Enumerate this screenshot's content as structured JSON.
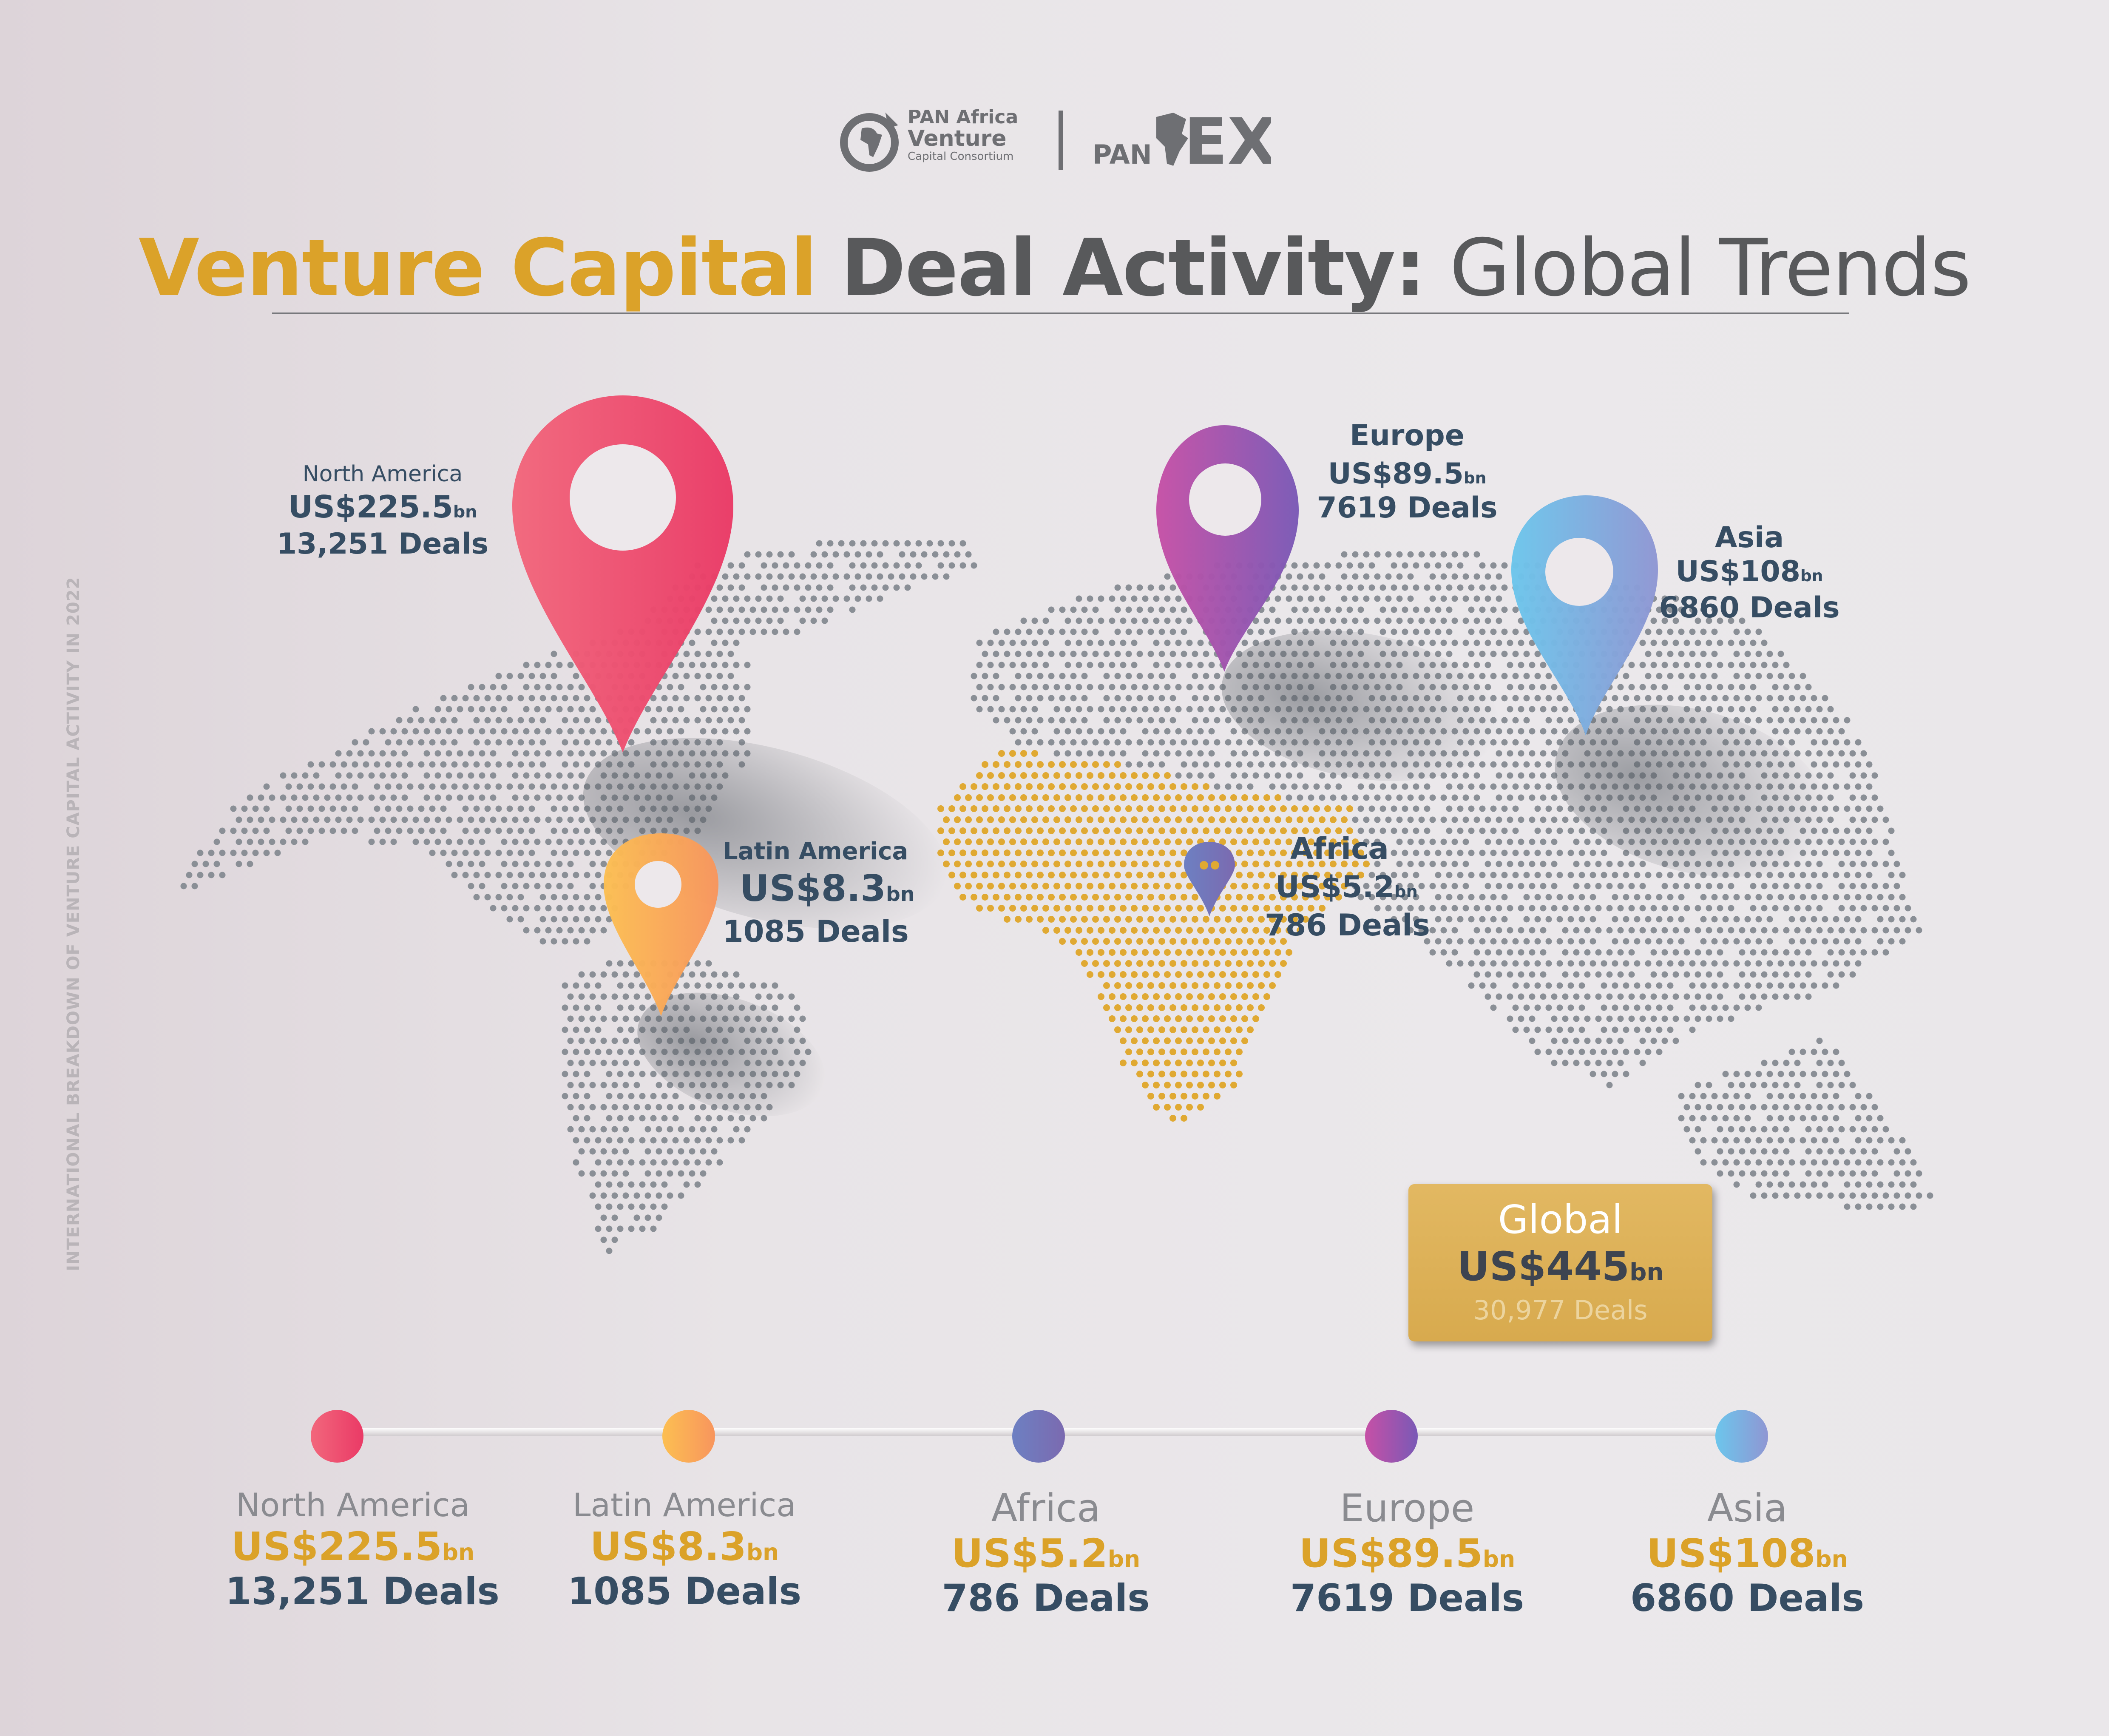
{
  "logos": {
    "pan_africa": {
      "line1": "PAN Africa",
      "line2": "Venture",
      "line3": "Capital Consortium"
    },
    "panex": {
      "text": "PANEX"
    }
  },
  "title": {
    "part1": "Venture Capital",
    "part2": "Deal Activity:",
    "part3": "Global Trends"
  },
  "side_caption": "INTERNATIONAL BREAKDOWN OF VENTURE CAPITAL ACTIVITY IN 2022",
  "regions": {
    "north_america": {
      "name": "North America",
      "value": "US$225.5",
      "unit": "bn",
      "deals": "13,251 Deals",
      "color_from": "#f2677c",
      "color_to": "#ea3a66"
    },
    "latin_america": {
      "name": "Latin America",
      "value": "US$8.3",
      "unit": "bn",
      "deals": "1085 Deals",
      "color_from": "#fcbf52",
      "color_to": "#f8955d"
    },
    "africa": {
      "name": "Africa",
      "value": "US$5.2",
      "unit": "bn",
      "deals": "786 Deals",
      "color_from": "#6d80c2",
      "color_to": "#7b6ab0"
    },
    "europe": {
      "name": "Europe",
      "value": "US$89.5",
      "unit": "bn",
      "deals": "7619 Deals",
      "color_from": "#c650a6",
      "color_to": "#7a59b6"
    },
    "asia": {
      "name": "Asia",
      "value": "US$108",
      "unit": "bn",
      "deals": "6860 Deals",
      "color_from": "#6cc6ec",
      "color_to": "#8f96d3"
    }
  },
  "global": {
    "name": "Global",
    "value": "US$445",
    "unit": "bn",
    "deals": "30,977 Deals"
  },
  "colors": {
    "gold": "#dba229",
    "navy": "#364d63",
    "map_dot": "#8a8f96",
    "africa_dot": "#e0a932"
  }
}
